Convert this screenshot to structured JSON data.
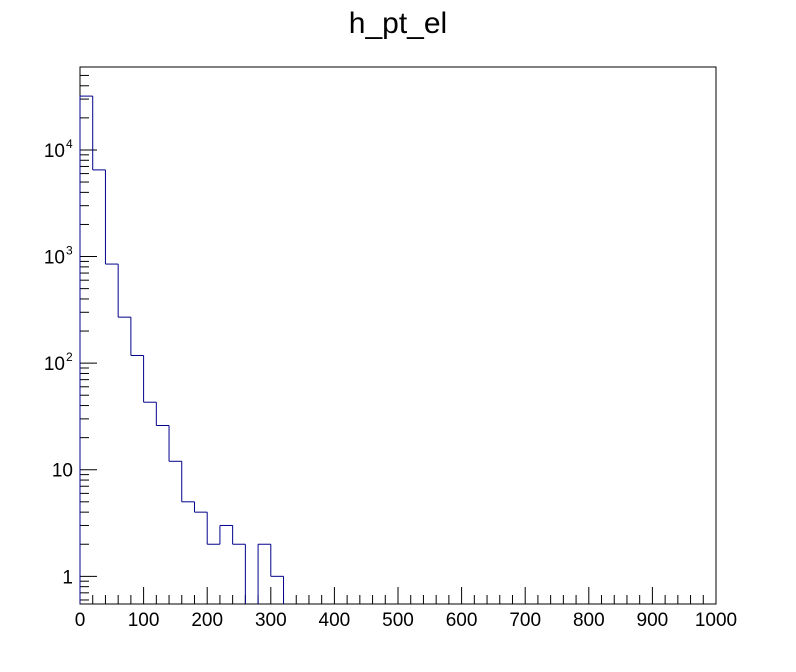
{
  "chart_data": {
    "type": "histogram",
    "title": "h_pt_el",
    "xlabel": "",
    "ylabel": "",
    "xlim": [
      0,
      1000
    ],
    "ylim": [
      0.55,
      60000
    ],
    "y_scale": "log",
    "grid": false,
    "bin_width": 20,
    "bin_edges_start": 0,
    "x_ticks": [
      "0",
      "100",
      "200",
      "300",
      "400",
      "500",
      "600",
      "700",
      "800",
      "900",
      "1000"
    ],
    "y_ticks": [
      {
        "base": "10",
        "exp": "4"
      },
      {
        "base": "10",
        "exp": "3"
      },
      {
        "base": "10",
        "exp": "2"
      },
      {
        "base": "10",
        "exp": ""
      },
      {
        "base": "1",
        "exp": ""
      }
    ],
    "values": [
      32000,
      6500,
      850,
      270,
      118,
      43,
      26,
      12,
      5,
      4,
      2,
      3,
      2,
      0,
      2,
      1
    ],
    "colors": {
      "line": "#00008b",
      "axis": "#000000"
    }
  }
}
